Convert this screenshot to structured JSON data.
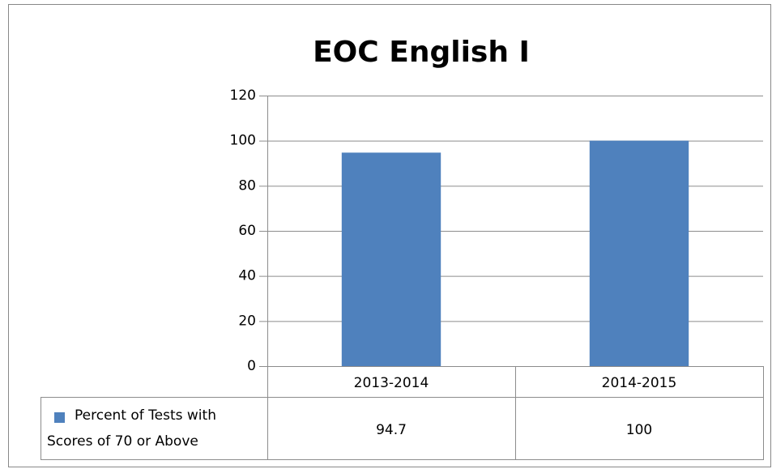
{
  "chart_data": {
    "type": "bar",
    "title": "EOC English I",
    "categories": [
      "2013-2014",
      "2014-2015"
    ],
    "series": [
      {
        "name": "Percent of Tests with Scores of 70 or Above",
        "color": "#4f81bd",
        "values": [
          94.7,
          100
        ]
      }
    ],
    "ylim": [
      0,
      120
    ],
    "yticks": [
      0,
      20,
      40,
      60,
      80,
      100,
      120
    ],
    "grid": true
  }
}
